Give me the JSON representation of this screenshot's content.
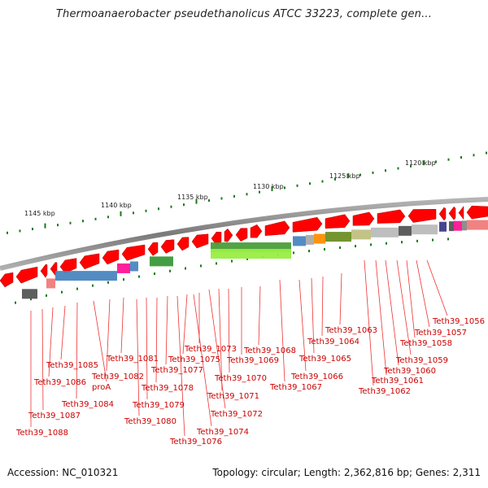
{
  "title": "Thermoanaerobacter pseudethanolicus ATCC 33223, complete gen...",
  "footer": {
    "accession": "Accession: NC_010321",
    "summary": "Topology: circular; Length: 2,362,816 bp; Genes: 2,311"
  },
  "scale_labels": [
    "1145 kbp",
    "1140 kbp",
    "1135 kbp",
    "1130 kbp",
    "1125 kbp",
    "1120 kbp"
  ],
  "gene_labels": [
    "Teth39_1056",
    "Teth39_1057",
    "Teth39_1058",
    "Teth39_1059",
    "Teth39_1060",
    "Teth39_1061",
    "Teth39_1062",
    "Teth39_1063",
    "Teth39_1064",
    "Teth39_1065",
    "Teth39_1066",
    "Teth39_1067",
    "Teth39_1068",
    "Teth39_1069",
    "Teth39_1070",
    "Teth39_1071",
    "Teth39_1072",
    "Teth39_1073",
    "Teth39_1074",
    "Teth39_1075",
    "Teth39_1076",
    "Teth39_1077",
    "Teth39_1078",
    "Teth39_1079",
    "Teth39_1080",
    "Teth39_1081",
    "Teth39_1082",
    "proA",
    "Teth39_1084",
    "Teth39_1085",
    "Teth39_1086",
    "Teth39_1087",
    "Teth39_1088"
  ],
  "colors": {
    "gene_arrow": "#ff0000",
    "label": "#cc0000",
    "backbone": "#8a8a8a",
    "tick": "#1a7a1a"
  }
}
